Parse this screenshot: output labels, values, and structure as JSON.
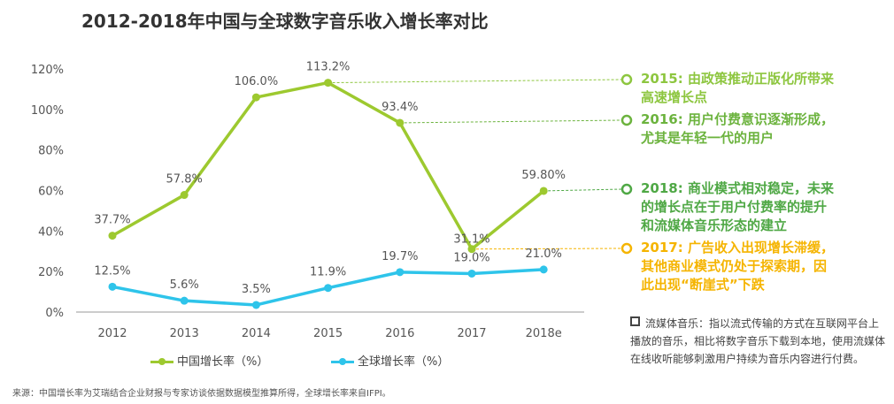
{
  "chart_data": {
    "type": "line",
    "title": "2012-2018年中国与全球数字音乐收入增长率对比",
    "categories": [
      "2012",
      "2013",
      "2014",
      "2015",
      "2016",
      "2017",
      "2018e"
    ],
    "series": [
      {
        "name": "中国增长率（%）",
        "values": [
          37.7,
          57.8,
          106.0,
          113.2,
          93.4,
          31.1,
          59.8
        ],
        "labels": [
          "37.7%",
          "57.8%",
          "106.0%",
          "113.2%",
          "93.4%",
          "31.1%",
          "59.80%"
        ],
        "color": "#9dc92f"
      },
      {
        "name": "全球增长率（%）",
        "values": [
          12.5,
          5.6,
          3.5,
          11.9,
          19.7,
          19.0,
          21.0
        ],
        "labels": [
          "12.5%",
          "5.6%",
          "3.5%",
          "11.9%",
          "19.7%",
          "19.0%",
          "21.0%"
        ],
        "color": "#2ec4ea"
      }
    ],
    "yticks": [
      "0%",
      "20%",
      "40%",
      "60%",
      "80%",
      "100%",
      "120%"
    ],
    "ylim": [
      0,
      120
    ],
    "grid": false,
    "legend": "bottom"
  },
  "annotations": [
    {
      "year_index": 3,
      "lines": [
        "2015: 由政策推动正版化所带来",
        "高速增长点"
      ],
      "color": "#8dc63f"
    },
    {
      "year_index": 4,
      "lines": [
        "2016: 用户付费意识逐渐形成，",
        "尤其是年轻一代的用户"
      ],
      "color": "#6cb33e"
    },
    {
      "year_index": 6,
      "lines": [
        "2018: 商业模式相对稳定，未来",
        "的增长点在于用户付费率的提升",
        "和流媒体音乐形态的建立"
      ],
      "color": "#4fa845"
    },
    {
      "year_index": 5,
      "lines": [
        "2017: 广告收入出现增长滞缓，",
        "其他商业模式仍处于探索期，因",
        "此出现“断崖式”下跌"
      ],
      "color": "#f5b400"
    }
  ],
  "note": "流媒体音乐：指以流式传输的方式在互联网平台上播放的音乐，相比将数字音乐下载到本地，使用流媒体在线收听能够刺激用户持续为音乐内容进行付费。",
  "source": "来源：中国增长率为艾瑞结合企业财报与专家访谈依据数据模型推算所得，全球增长率来自IFPI。"
}
